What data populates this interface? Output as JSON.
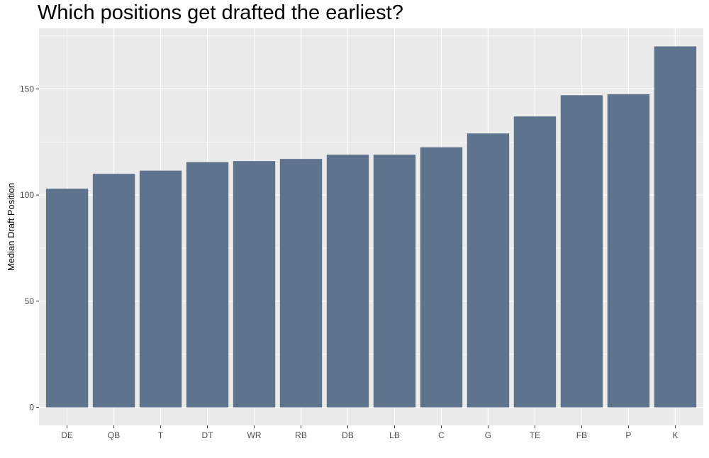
{
  "chart_data": {
    "type": "bar",
    "title": "Which positions get drafted the earliest?",
    "xlabel": "",
    "ylabel": "Median Draft Position",
    "categories": [
      "DE",
      "QB",
      "T",
      "DT",
      "WR",
      "RB",
      "DB",
      "LB",
      "C",
      "G",
      "TE",
      "FB",
      "P",
      "K"
    ],
    "values": [
      103,
      110,
      111.5,
      115.5,
      116,
      117,
      119,
      119,
      122.5,
      129,
      137,
      147,
      147.5,
      170
    ],
    "ylim": [
      -8.5,
      178.5
    ],
    "yticks": [
      0,
      50,
      100,
      150
    ],
    "ytick_labels": [
      "0",
      "50",
      "100",
      "150"
    ],
    "grid": true,
    "legend": "none",
    "colors": {
      "bar": "#5e738e",
      "panel": "#ebebeb",
      "grid": "#ffffff"
    }
  }
}
